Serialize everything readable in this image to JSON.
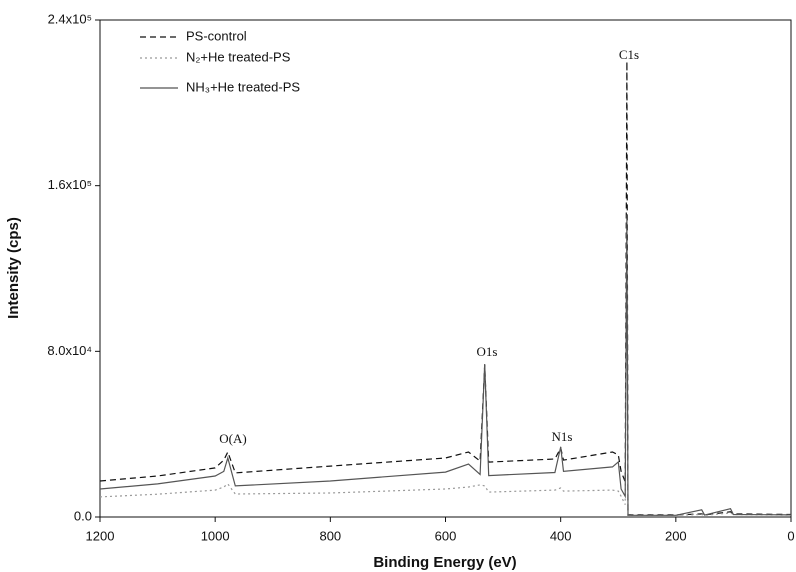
{
  "chart_data": {
    "type": "line",
    "x_label": "Binding Energy (eV)",
    "y_label": "Intensity (cps)",
    "x": [
      1200,
      1100,
      1000,
      985,
      978,
      965,
      800,
      600,
      560,
      540,
      532,
      525,
      410,
      400,
      395,
      310,
      300,
      295,
      288,
      285,
      283,
      200,
      155,
      150,
      105,
      100,
      0
    ],
    "series": [
      {
        "name": "PS-control",
        "color": "#111111",
        "style": "dashed",
        "values": [
          17400,
          19800,
          23700,
          27500,
          31400,
          21300,
          24600,
          28500,
          31400,
          27000,
          73400,
          26500,
          28000,
          33300,
          27500,
          31400,
          30000,
          22000,
          17000,
          220000,
          1000,
          1000,
          1500,
          1000,
          2500,
          1500,
          1200
        ]
      },
      {
        "name": "N₂+He treated-PS",
        "color": "#999999",
        "style": "dotted",
        "values": [
          9700,
          11000,
          13000,
          14500,
          16000,
          11100,
          11600,
          13500,
          14500,
          15500,
          15000,
          12000,
          13000,
          14000,
          12500,
          13000,
          12500,
          10000,
          6000,
          140000,
          800,
          800,
          1200,
          800,
          2000,
          1200,
          900
        ]
      },
      {
        "name": "NH₃+He treated-PS",
        "color": "#555555",
        "style": "solid",
        "values": [
          13500,
          16000,
          19800,
          22000,
          28500,
          15000,
          17400,
          21700,
          25600,
          20500,
          73900,
          20000,
          21500,
          33800,
          22000,
          24200,
          26600,
          13500,
          10000,
          146000,
          800,
          800,
          3500,
          900,
          4000,
          1200,
          1000
        ]
      }
    ],
    "annotations": [
      "C1s",
      "O1s",
      "N1s",
      "O(A)"
    ],
    "xlim": [
      1200,
      0
    ],
    "xticks": [
      1200,
      1000,
      800,
      600,
      400,
      200,
      0
    ],
    "ylim": [
      0,
      240000
    ],
    "yticks": [
      {
        "value": 0,
        "label": "0.0"
      },
      {
        "value": 80000,
        "label": "8.0x10⁴"
      },
      {
        "value": 160000,
        "label": "1.6x10⁵"
      },
      {
        "value": 240000,
        "label": "2.4x10⁵"
      }
    ],
    "legend": "upper left",
    "grid": false
  }
}
